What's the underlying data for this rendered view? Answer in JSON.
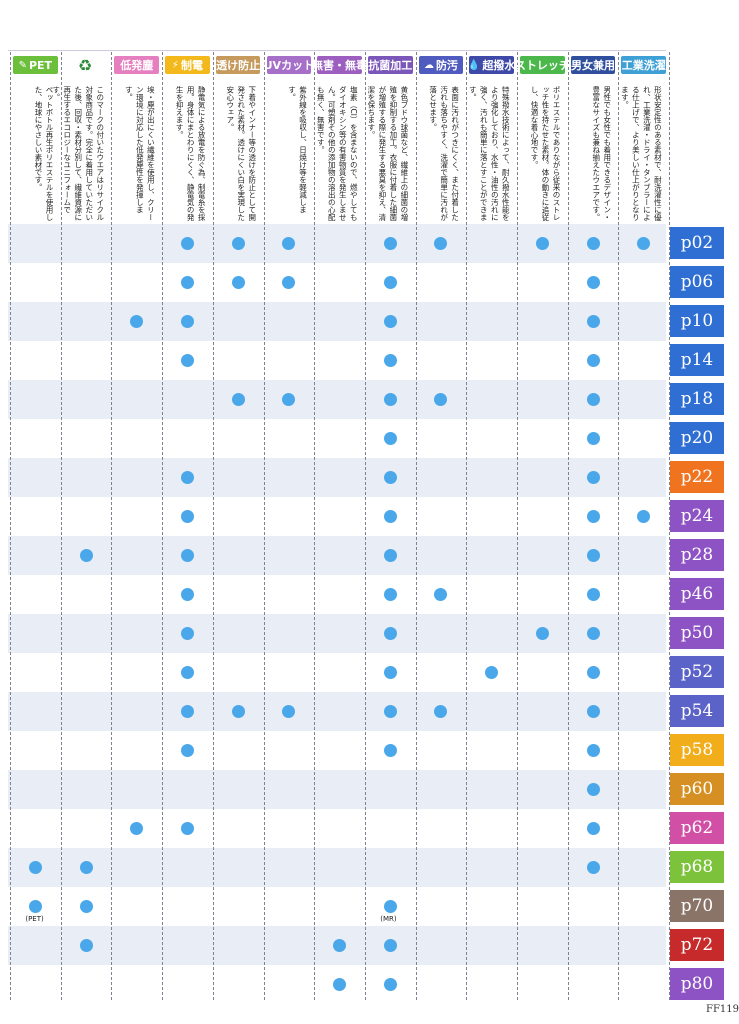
{
  "columns": [
    {
      "label": "PET",
      "icon": "leaf-icon",
      "color": "#6bbf3a",
      "desc": "ペットボトル再生ポリエステルを使用した、地球にやさしい素材です。"
    },
    {
      "label": "",
      "icon": "recycle-icon",
      "color": "#ffffff",
      "desc": "このマークの付いたウエアはリサイクル対象商品です。完全に着用していただいた後、回収・素材分別して、繊維資源に再生するエコロジーなユニフォームです。"
    },
    {
      "label": "低発塵",
      "icon": "",
      "color": "#e57fc0",
      "desc": "埃・塵が出にくい繊維を使用し、クリーン環境に対応した低発塵性を発揮します。"
    },
    {
      "label": "制電",
      "icon": "lightning-icon",
      "color": "#f3b81b",
      "desc": "静電気による放電を防ぐ為、制電糸を採用。身体にまとわりにくく、静電気の発生を抑えます。"
    },
    {
      "label": "透け防止",
      "icon": "",
      "color": "#c59a5c",
      "desc": "下着やインナー等の透けを防止として開発された素材。透けにくい白を実現した安心ウェア。"
    },
    {
      "label": "UVカット",
      "icon": "",
      "color": "#a66fc8",
      "desc": "紫外線を吸収し、日焼け等を軽減します。"
    },
    {
      "label": "無害・無毒",
      "icon": "",
      "color": "#9c5fc0",
      "desc": "塩素（Cl）を含まないので、燃やしてもダイオキシン等の有害物質を発生しません。可塑剤その他の添加物の溶出の心配も無く、無害です。"
    },
    {
      "label": "抗菌加工",
      "icon": "",
      "color": "#7a57b8",
      "desc": "黄色ブドウ球菌など、繊維上の細菌の増殖を抑制する加工。衣服に付着した細菌が増殖する際に発生する悪臭を抑え、清潔を保ちます。"
    },
    {
      "label": "防汚",
      "icon": "blob-icon",
      "color": "#4f5bbf",
      "desc": "表面に汚れがつきにくく、また付着した汚れも落ちやすく、洗濯で簡単に汚れが落とせます。"
    },
    {
      "label": "超撥水",
      "icon": "drop-icon",
      "color": "#3f4aa8",
      "desc": "特殊撥水技術によって、耐久撥水性能をより強化しており、水性・油性の汚れに強く、汚れも簡単に落とすことができます。"
    },
    {
      "label": "ストレッチ",
      "icon": "",
      "color": "#4cb84c",
      "desc": "ポリエステルでありながら従来のストレッチ性を持たせた素材。体の動きに追従し、快適な着心地です。"
    },
    {
      "label": "男女兼用",
      "icon": "",
      "color": "#2f4f9e",
      "desc": "男性でも女性でも着用できるデザイン・豊富なサイズも兼ね揃えたウエアです。"
    },
    {
      "label": "工業洗濯",
      "icon": "",
      "color": "#3fa0d6",
      "desc": "形状安定性のある素材で、耐洗濯性に優れ、工業洗濯・ドライ・タンブラーによる仕上げで、より美しい仕上がりとなります。"
    }
  ],
  "rows": [
    {
      "page": "p02",
      "tab_color": "#2f6fd4",
      "dots": [
        3,
        4,
        5,
        7,
        8,
        10,
        11,
        12
      ]
    },
    {
      "page": "p06",
      "tab_color": "#2f6fd4",
      "dots": [
        3,
        4,
        5,
        7,
        11
      ]
    },
    {
      "page": "p10",
      "tab_color": "#2f6fd4",
      "dots": [
        2,
        3,
        7,
        11
      ]
    },
    {
      "page": "p14",
      "tab_color": "#2f6fd4",
      "dots": [
        3,
        7,
        11
      ]
    },
    {
      "page": "p18",
      "tab_color": "#2f6fd4",
      "dots": [
        4,
        5,
        7,
        8,
        11
      ]
    },
    {
      "page": "p20",
      "tab_color": "#2f6fd4",
      "dots": [
        7,
        11
      ]
    },
    {
      "page": "p22",
      "tab_color": "#f07320",
      "dots": [
        3,
        7,
        11
      ]
    },
    {
      "page": "p24",
      "tab_color": "#8d52c4",
      "dots": [
        3,
        7,
        11,
        12
      ]
    },
    {
      "page": "p28",
      "tab_color": "#8d52c4",
      "dots": [
        1,
        3,
        7,
        11
      ]
    },
    {
      "page": "p46",
      "tab_color": "#8d52c4",
      "dots": [
        3,
        7,
        8,
        11
      ]
    },
    {
      "page": "p50",
      "tab_color": "#8d52c4",
      "dots": [
        3,
        7,
        10,
        11
      ]
    },
    {
      "page": "p52",
      "tab_color": "#5b63c8",
      "dots": [
        3,
        7,
        9,
        11
      ]
    },
    {
      "page": "p54",
      "tab_color": "#5b63c8",
      "dots": [
        3,
        4,
        5,
        7,
        8,
        11
      ]
    },
    {
      "page": "p58",
      "tab_color": "#f2ad1a",
      "dots": [
        3,
        7,
        11
      ]
    },
    {
      "page": "p60",
      "tab_color": "#d68f22",
      "dots": [
        11
      ]
    },
    {
      "page": "p62",
      "tab_color": "#d24fa6",
      "dots": [
        2,
        3,
        11
      ]
    },
    {
      "page": "p68",
      "tab_color": "#7cc23a",
      "dots": [
        0,
        1,
        11
      ]
    },
    {
      "page": "p70",
      "tab_color": "#8a7468",
      "dots": [
        0,
        1,
        7
      ]
    },
    {
      "page": "p72",
      "tab_color": "#c62a2a",
      "dots": [
        1,
        6,
        7
      ]
    },
    {
      "page": "p80",
      "tab_color": "#8d52c4",
      "dots": [
        6,
        7
      ]
    }
  ],
  "notes": [
    {
      "text": "(PET)",
      "row": 17,
      "col": 0
    },
    {
      "text": "(MR)",
      "row": 17,
      "col": 7
    }
  ],
  "folio": "FF119",
  "dot_color": "#4aa8ea"
}
